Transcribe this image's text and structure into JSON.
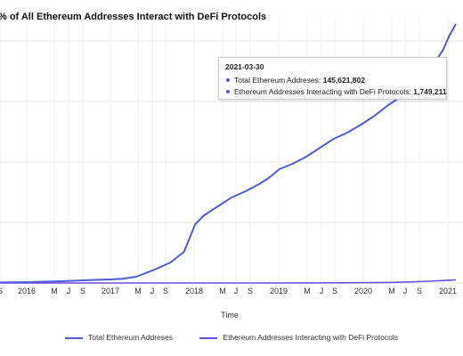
{
  "chart_data": {
    "type": "line",
    "title": "% of All Ethereum Addresses Interact with DeFi Protocols",
    "xlabel": "Time",
    "ylabel": "",
    "x_tick_labels": [
      "S",
      "2016",
      "M",
      "J",
      "S",
      "2017",
      "M",
      "J",
      "S",
      "2018",
      "M",
      "J",
      "S",
      "2019",
      "M",
      "J",
      "S",
      "2020",
      "M",
      "J",
      "S",
      "2021"
    ],
    "grid": true,
    "legend_position": "bottom",
    "series": [
      {
        "name": "Total Ethereum Addreses",
        "color": "#4a5fd6",
        "points": [
          [
            "2015-09-01",
            0.3
          ],
          [
            "2016-01-01",
            0.5
          ],
          [
            "2016-06-01",
            1.0
          ],
          [
            "2016-10-01",
            1.6
          ],
          [
            "2017-01-01",
            2.0
          ],
          [
            "2017-03-01",
            2.4
          ],
          [
            "2017-05-01",
            3.5
          ],
          [
            "2017-06-01",
            5.0
          ],
          [
            "2017-08-01",
            8.0
          ],
          [
            "2017-10-01",
            11.5
          ],
          [
            "2017-12-01",
            17.5
          ],
          [
            "2018-01-01",
            27.0
          ],
          [
            "2018-01-20",
            33.0
          ],
          [
            "2018-03-01",
            38.0
          ],
          [
            "2018-05-01",
            43.0
          ],
          [
            "2018-07-01",
            48.0
          ],
          [
            "2018-09-01",
            51.5
          ],
          [
            "2018-11-01",
            55.5
          ],
          [
            "2018-12-15",
            59.0
          ],
          [
            "2019-02-01",
            64.0
          ],
          [
            "2019-04-01",
            67.0
          ],
          [
            "2019-06-01",
            71.0
          ],
          [
            "2019-08-01",
            76.0
          ],
          [
            "2019-10-01",
            81.0
          ],
          [
            "2019-12-01",
            84.5
          ],
          [
            "2020-02-01",
            89.0
          ],
          [
            "2020-04-01",
            94.0
          ],
          [
            "2020-06-01",
            100.0
          ],
          [
            "2020-08-01",
            105.0
          ],
          [
            "2020-10-01",
            112.0
          ],
          [
            "2020-12-01",
            120.0
          ],
          [
            "2021-01-01",
            125.0
          ],
          [
            "2021-02-01",
            131.0
          ],
          [
            "2021-03-01",
            139.0
          ],
          [
            "2021-03-30",
            145.6
          ]
        ]
      },
      {
        "name": "Ethereum Addresses Interacting with DeFi Protocols",
        "color": "#6a4fe0",
        "points": [
          [
            "2015-09-01",
            0.0
          ],
          [
            "2019-01-01",
            0.0
          ],
          [
            "2019-06-01",
            0.05
          ],
          [
            "2020-01-01",
            0.15
          ],
          [
            "2020-06-01",
            0.3
          ],
          [
            "2020-09-01",
            0.6
          ],
          [
            "2020-12-01",
            1.0
          ],
          [
            "2021-02-01",
            1.4
          ],
          [
            "2021-03-30",
            1.75
          ]
        ]
      }
    ]
  },
  "tooltip": {
    "date": "2021-03-30",
    "rows": [
      {
        "label": "Total Ethereum Addreses:",
        "value": "145,621,802",
        "color": "#4a5fd6"
      },
      {
        "label": "Ethereum Addresses Interacting with DeFi Protocols:",
        "value": "1,749,211",
        "color": "#6a4fe0"
      }
    ]
  },
  "legend": {
    "items": [
      {
        "label": "Total Ethereum Addreses",
        "color": "#4a5fd6"
      },
      {
        "label": "Ethereum Addresses Interacting with DeFi Protocols",
        "color": "#6a4fe0"
      }
    ]
  }
}
